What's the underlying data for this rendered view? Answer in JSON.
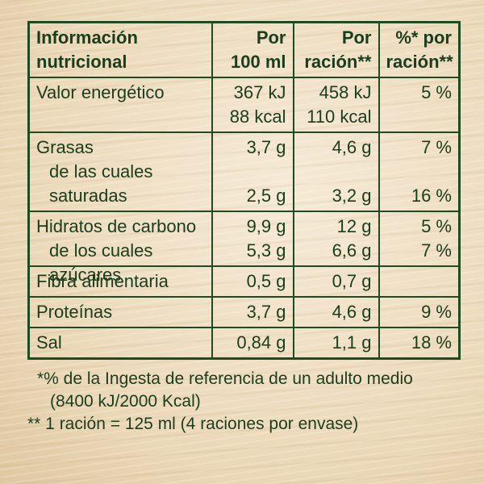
{
  "table": {
    "headers": {
      "col1_line1": "Información",
      "col1_line2": "nutricional",
      "col2_line1": "Por",
      "col2_line2": "100 ml",
      "col3_line1": "Por",
      "col3_line2": "ración**",
      "col4_line1": "%* por",
      "col4_line2": "ración**"
    },
    "energy": {
      "label": "Valor energético",
      "per100_kj": "367 kJ",
      "per100_kcal": "88 kcal",
      "serving_kj": "458 kJ",
      "serving_kcal": "110 kcal",
      "pct": "5 %"
    },
    "fat": {
      "label": "Grasas",
      "sub_label_1": "de las cuales",
      "sub_label_2": "saturadas",
      "per100": "3,7 g",
      "serving": "4,6 g",
      "pct": "7 %",
      "sat_per100": "2,5 g",
      "sat_serving": "3,2 g",
      "sat_pct": "16 %"
    },
    "carbs": {
      "label": "Hidratos de carbono",
      "sub_label": "de los cuales azúcares",
      "per100": "9,9 g",
      "serving": "12 g",
      "pct": "5 %",
      "sug_per100": "5,3 g",
      "sug_serving": "6,6 g",
      "sug_pct": "7 %"
    },
    "fiber": {
      "label": "Fibra alimentaria",
      "per100": "0,5 g",
      "serving": "0,7 g",
      "pct": ""
    },
    "protein": {
      "label": "Proteínas",
      "per100": "3,7 g",
      "serving": "4,6 g",
      "pct": "9 %"
    },
    "salt": {
      "label": "Sal",
      "per100": "0,84 g",
      "serving": "1,1 g",
      "pct": "18 %"
    }
  },
  "notes": {
    "note1_line1": "*% de la Ingesta de referencia de un adulto medio",
    "note1_line2": "(8400 kJ/2000 Kcal)",
    "note2": "** 1 ración = 125 ml (4 raciones por envase)"
  }
}
